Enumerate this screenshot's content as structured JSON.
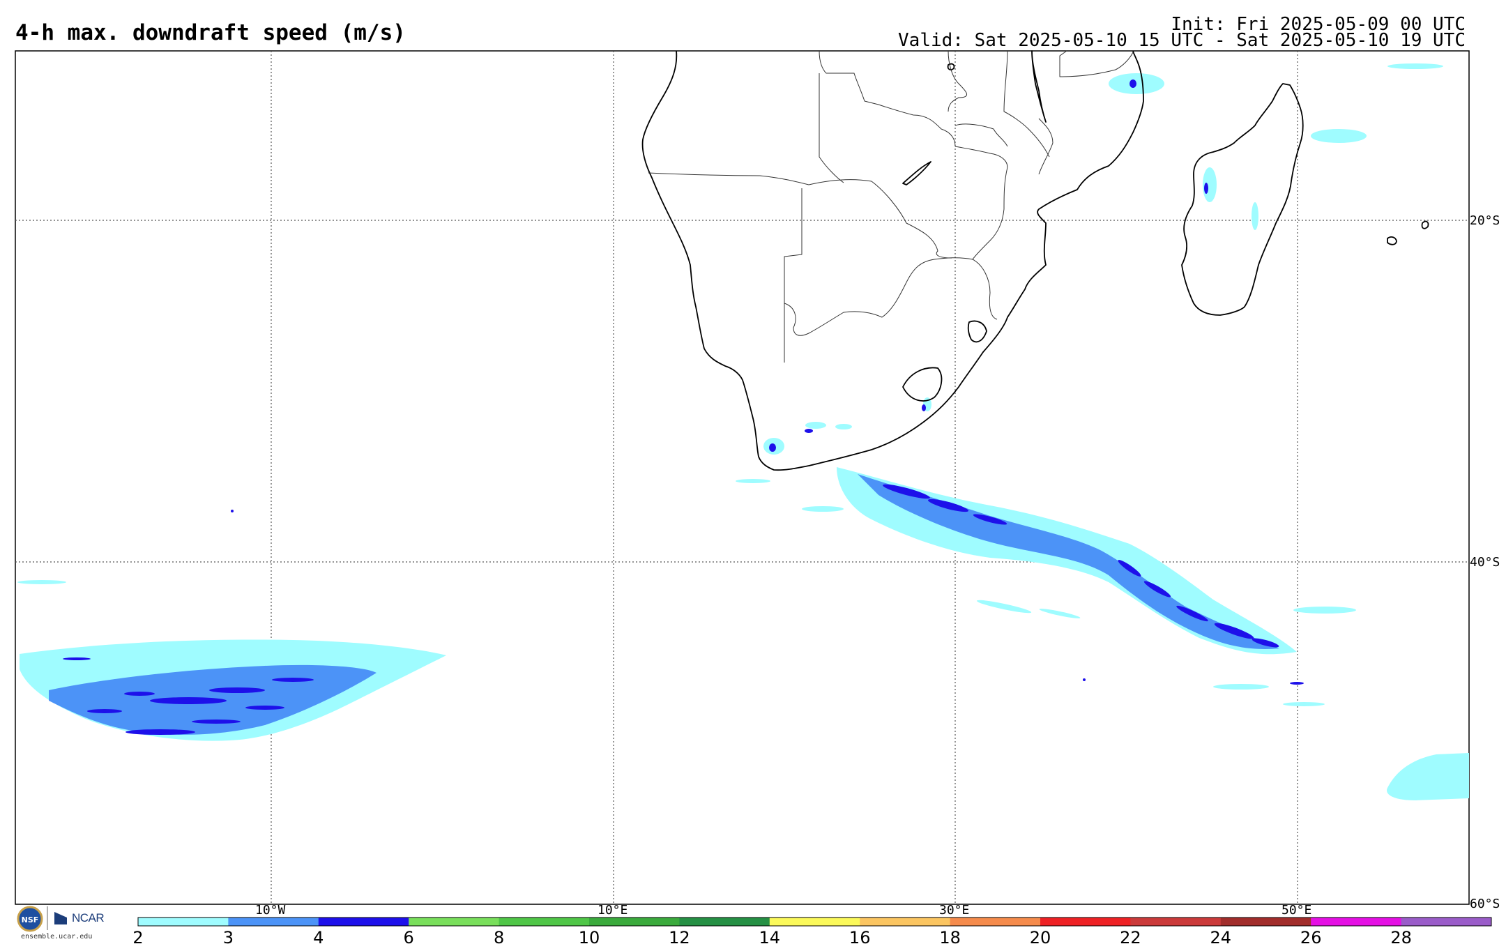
{
  "header": {
    "title": "4-h max. downdraft speed (m/s)",
    "init": "Init: Fri 2025-05-09 00 UTC",
    "valid": "Valid: Sat 2025-05-10 15 UTC - Sat 2025-05-10 19 UTC"
  },
  "map": {
    "lat_labels": [
      "20°S",
      "40°S",
      "60°S"
    ],
    "lon_labels": [
      "10°W",
      "10°E",
      "30°E",
      "50°E"
    ]
  },
  "colorbar": {
    "ticks": [
      "2",
      "3",
      "4",
      "6",
      "8",
      "10",
      "12",
      "14",
      "16",
      "18",
      "20",
      "22",
      "24",
      "26",
      "28"
    ],
    "colors": [
      "#9ffcff",
      "#4c93f7",
      "#1d10ea",
      "#79df5b",
      "#4fc647",
      "#3aaa3c",
      "#259044",
      "#fbf95a",
      "#fbc561",
      "#f58b4c",
      "#ee2124",
      "#cb3a3a",
      "#a12d2b",
      "#e510e4",
      "#9a5cc9"
    ]
  },
  "footer": {
    "logo_nsf": "NSF",
    "logo_ncar": "NCAR",
    "site": "ensemble.ucar.edu"
  }
}
